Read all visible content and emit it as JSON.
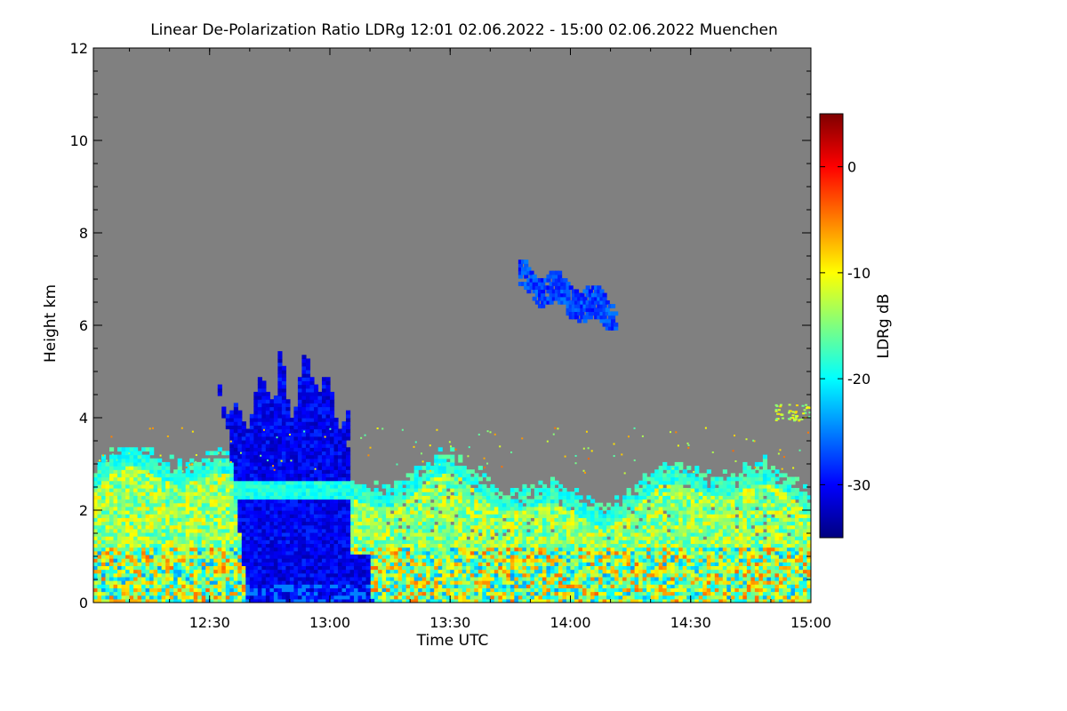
{
  "chart_data": {
    "type": "heatmap",
    "title": "Linear De-Polarization Ratio LDRg   12:01 02.06.2022 - 15:00 02.06.2022 Muenchen",
    "xlabel": "Time UTC",
    "ylabel": "Height km",
    "x_ticks": [
      "12:30",
      "13:00",
      "13:30",
      "14:00",
      "14:30",
      "15:00"
    ],
    "x_tick_minutes": [
      29,
      59,
      89,
      119,
      149,
      179
    ],
    "xlim_minutes": [
      0,
      179
    ],
    "y_ticks": [
      0,
      2,
      4,
      6,
      8,
      10,
      12
    ],
    "ylim": [
      0,
      12
    ],
    "colorbar": {
      "label": "LDRg dB",
      "ticks": [
        0,
        -10,
        -20,
        -30
      ],
      "range": [
        -35,
        5
      ],
      "colors": [
        "#00007f",
        "#0000ff",
        "#007fff",
        "#00ffff",
        "#7fff7f",
        "#ffff00",
        "#ff7f00",
        "#ff0000",
        "#7f0000"
      ]
    },
    "background_color": "#808080",
    "regions": [
      {
        "name": "boundary-layer-aerosol",
        "ldr_db": -14,
        "time_minutes": [
          0,
          179
        ],
        "height_km": [
          0,
          2.9
        ]
      },
      {
        "name": "precipitation-fall-streak",
        "ldr_db": -31,
        "time_minutes": [
          38,
          64
        ],
        "height_km": [
          0,
          5.5
        ]
      },
      {
        "name": "melting-layer",
        "ldr_db": -20,
        "time_minutes": [
          40,
          62
        ],
        "height_km": [
          2.2,
          2.6
        ]
      },
      {
        "name": "mid-level-cloud",
        "ldr_db": -28,
        "time_minutes": [
          107,
          128
        ],
        "height_km": [
          5.9,
          7.3
        ]
      }
    ]
  }
}
